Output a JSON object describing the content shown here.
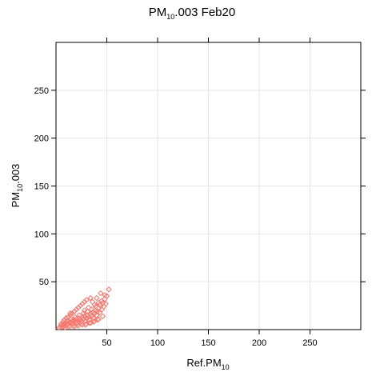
{
  "chart_data": {
    "type": "scatter",
    "title": {
      "pre": "PM",
      "sub": "10",
      "post": ".003 Feb20"
    },
    "xlabel": {
      "pre": "Ref.PM",
      "sub": "10",
      "post": ""
    },
    "ylabel": {
      "pre": "PM",
      "sub": "10",
      "post": ".003"
    },
    "xlim": [
      0,
      300
    ],
    "ylim": [
      0,
      300
    ],
    "x_ticks": [
      50,
      100,
      150,
      200,
      250
    ],
    "y_ticks": [
      50,
      100,
      150,
      200,
      250
    ],
    "grid": true,
    "marker": "diamond-open",
    "colors": {
      "point": "#f8766d",
      "grid": "#e6e6e6",
      "axis": "#000000"
    },
    "series": [
      {
        "points": [
          [
            3,
            2
          ],
          [
            4,
            3
          ],
          [
            5,
            4
          ],
          [
            6,
            5
          ],
          [
            7,
            3
          ],
          [
            8,
            6
          ],
          [
            9,
            4
          ],
          [
            10,
            7
          ],
          [
            11,
            5
          ],
          [
            12,
            6
          ],
          [
            13,
            8
          ],
          [
            14,
            4
          ],
          [
            15,
            7
          ],
          [
            16,
            9
          ],
          [
            17,
            6
          ],
          [
            18,
            10
          ],
          [
            19,
            8
          ],
          [
            20,
            11
          ],
          [
            21,
            7
          ],
          [
            22,
            9
          ],
          [
            23,
            12
          ],
          [
            24,
            10
          ],
          [
            25,
            8
          ],
          [
            26,
            13
          ],
          [
            27,
            11
          ],
          [
            28,
            14
          ],
          [
            29,
            9
          ],
          [
            30,
            12
          ],
          [
            31,
            15
          ],
          [
            32,
            13
          ],
          [
            33,
            10
          ],
          [
            34,
            16
          ],
          [
            35,
            14
          ],
          [
            36,
            18
          ],
          [
            37,
            12
          ],
          [
            38,
            17
          ],
          [
            39,
            20
          ],
          [
            40,
            15
          ],
          [
            41,
            19
          ],
          [
            42,
            22
          ],
          [
            43,
            18
          ],
          [
            44,
            25
          ],
          [
            45,
            21
          ],
          [
            46,
            28
          ],
          [
            47,
            24
          ],
          [
            48,
            32
          ],
          [
            49,
            27
          ],
          [
            50,
            35
          ],
          [
            44,
            38
          ],
          [
            52,
            42
          ],
          [
            5,
            6
          ],
          [
            7,
            8
          ],
          [
            9,
            2
          ],
          [
            11,
            9
          ],
          [
            13,
            3
          ],
          [
            15,
            11
          ],
          [
            17,
            4
          ],
          [
            19,
            13
          ],
          [
            21,
            5
          ],
          [
            23,
            15
          ],
          [
            25,
            6
          ],
          [
            27,
            17
          ],
          [
            29,
            5
          ],
          [
            31,
            19
          ],
          [
            33,
            7
          ],
          [
            35,
            21
          ],
          [
            37,
            8
          ],
          [
            39,
            24
          ],
          [
            41,
            10
          ],
          [
            43,
            26
          ],
          [
            12,
            13
          ],
          [
            14,
            15
          ],
          [
            16,
            17
          ],
          [
            18,
            19
          ],
          [
            20,
            21
          ],
          [
            22,
            23
          ],
          [
            24,
            25
          ],
          [
            26,
            27
          ],
          [
            28,
            29
          ],
          [
            30,
            31
          ],
          [
            18,
            3
          ],
          [
            22,
            4
          ],
          [
            26,
            5
          ],
          [
            30,
            6
          ],
          [
            34,
            7
          ],
          [
            38,
            9
          ],
          [
            42,
            11
          ],
          [
            46,
            14
          ],
          [
            36,
            29
          ],
          [
            40,
            33
          ],
          [
            8,
            10
          ],
          [
            10,
            12
          ],
          [
            14,
            17
          ],
          [
            28,
            20
          ],
          [
            32,
            23
          ],
          [
            38,
            26
          ],
          [
            45,
            30
          ],
          [
            48,
            36
          ],
          [
            34,
            33
          ],
          [
            42,
            28
          ]
        ]
      }
    ]
  }
}
